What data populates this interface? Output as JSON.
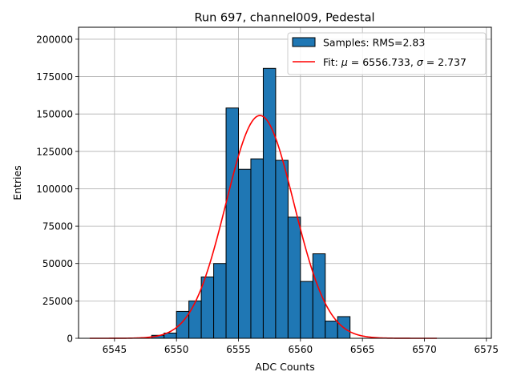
{
  "chart_data": {
    "type": "bar",
    "title": "Run 697, channel009, Pedestal",
    "xlabel": "ADC Counts",
    "ylabel": "Entries",
    "xlim": [
      6542.1,
      6575.4
    ],
    "ylim": [
      0,
      208000
    ],
    "grid": true,
    "legend_position": "top-right",
    "x_ticks": [
      6545,
      6550,
      6555,
      6560,
      6565,
      6570,
      6575
    ],
    "y_ticks": [
      0,
      25000,
      50000,
      75000,
      100000,
      125000,
      150000,
      175000,
      200000
    ],
    "histogram": {
      "name": "Samples: RMS=2.83",
      "color": "#1f77b4",
      "edgecolor": "#000000",
      "bin_edges": [
        6548,
        6549,
        6550,
        6551,
        6552,
        6553,
        6554,
        6555,
        6556,
        6557,
        6558,
        6559,
        6560,
        6561,
        6562,
        6563,
        6564
      ],
      "values": [
        2000,
        3500,
        18000,
        25000,
        41000,
        50000,
        154000,
        113000,
        120000,
        180500,
        119000,
        81000,
        38000,
        56500,
        11500,
        14500
      ]
    },
    "fit": {
      "name_prefix": "Fit: ",
      "mu_label": "μ",
      "mu_text": " = 6556.733, ",
      "sigma_label": "σ",
      "sigma_text": " = 2.737",
      "color": "#ff0000",
      "mu": 6556.733,
      "sigma": 2.737,
      "amplitude": 149000,
      "x_range": [
        6543,
        6571
      ]
    }
  }
}
